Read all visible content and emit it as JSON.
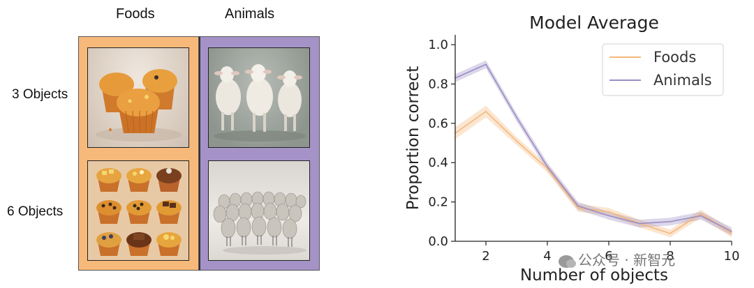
{
  "grid": {
    "columns": [
      "Foods",
      "Animals"
    ],
    "rows": [
      "3 Objects",
      "6 Objects"
    ],
    "colors": {
      "foods": "#f7b97a",
      "animals": "#a593c8"
    }
  },
  "watermark": {
    "text": "公众号 · 新智元"
  },
  "chart_data": {
    "type": "line",
    "title": "Model Average",
    "xlabel": "Number of objects",
    "ylabel": "Proportion correct",
    "xlim": [
      1,
      10
    ],
    "ylim": [
      0,
      1.05
    ],
    "xticks": [
      2,
      4,
      6,
      8,
      10
    ],
    "yticks": [
      0.0,
      0.2,
      0.4,
      0.6,
      0.8,
      1.0
    ],
    "ytick_labels": [
      "0.0",
      "0.2",
      "0.4",
      "0.6",
      "0.8",
      "1.0"
    ],
    "x": [
      1,
      2,
      3,
      4,
      5,
      6,
      7,
      8,
      9,
      10
    ],
    "series": [
      {
        "name": "Foods",
        "color": "#f4b77c",
        "values": [
          0.55,
          0.66,
          0.51,
          0.37,
          0.17,
          0.15,
          0.09,
          0.04,
          0.14,
          0.04
        ],
        "band": [
          0.03,
          0.03,
          0.02,
          0.02,
          0.02,
          0.02,
          0.02,
          0.02,
          0.02,
          0.02
        ]
      },
      {
        "name": "Animals",
        "color": "#9b8cc4",
        "values": [
          0.83,
          0.9,
          0.63,
          0.38,
          0.18,
          0.13,
          0.09,
          0.1,
          0.13,
          0.05
        ],
        "band": [
          0.02,
          0.02,
          0.02,
          0.02,
          0.02,
          0.02,
          0.02,
          0.02,
          0.02,
          0.02
        ]
      }
    ],
    "legend": "top-right",
    "grid": false
  }
}
